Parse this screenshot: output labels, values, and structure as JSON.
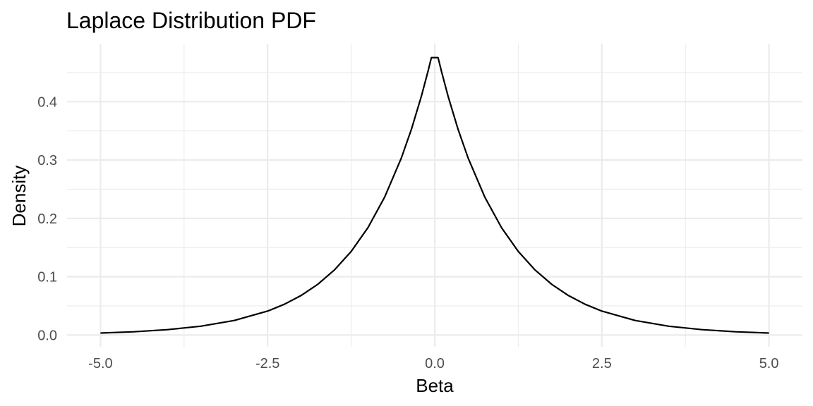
{
  "chart_data": {
    "type": "line",
    "title": "Laplace Distribution PDF",
    "xlabel": "Beta",
    "ylabel": "Density",
    "xlim": [
      -5.0,
      5.0
    ],
    "ylim": [
      0,
      0.475
    ],
    "x_ticks": [
      -5.0,
      -2.5,
      0.0,
      2.5,
      5.0
    ],
    "x_tick_labels": [
      "-5.0",
      "-2.5",
      "0.0",
      "2.5",
      "5.0"
    ],
    "y_ticks": [
      0.0,
      0.1,
      0.2,
      0.3,
      0.4
    ],
    "y_tick_labels": [
      "0.0",
      "0.1",
      "0.2",
      "0.3",
      "0.4"
    ],
    "grid": true,
    "legend": "none",
    "line_color": "#000000",
    "series": [
      {
        "x": [
          -5.0,
          -4.5,
          -4.0,
          -3.5,
          -3.0,
          -2.5,
          -2.25,
          -2.0,
          -1.75,
          -1.5,
          -1.25,
          -1.0,
          -0.75,
          -0.5,
          -0.35,
          -0.2,
          -0.1,
          -0.05,
          0.05,
          0.1,
          0.2,
          0.35,
          0.5,
          0.75,
          1.0,
          1.25,
          1.5,
          1.75,
          2.0,
          2.25,
          2.5,
          3.0,
          3.5,
          4.0,
          4.5,
          5.0
        ],
        "y": [
          0.0034,
          0.0056,
          0.0092,
          0.0151,
          0.0249,
          0.041,
          0.0527,
          0.0677,
          0.0869,
          0.1116,
          0.1433,
          0.1839,
          0.2362,
          0.3033,
          0.3523,
          0.4093,
          0.4524,
          0.4756,
          0.4756,
          0.4524,
          0.4093,
          0.3523,
          0.3033,
          0.2362,
          0.1839,
          0.1433,
          0.1116,
          0.0869,
          0.0677,
          0.0527,
          0.041,
          0.0249,
          0.0151,
          0.0092,
          0.0056,
          0.0034
        ]
      }
    ]
  }
}
